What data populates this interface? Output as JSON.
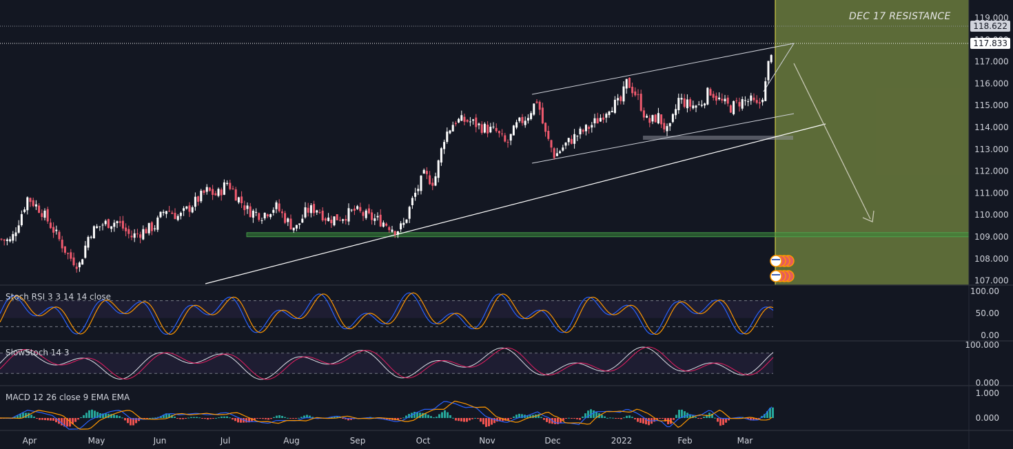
{
  "chart_data": {
    "type": "candlestick",
    "title": "",
    "annotation": "DEC 17 RESISTANCE",
    "price_axis": {
      "ticks": [
        "119.000",
        "118.000",
        "117.000",
        "116.000",
        "115.000",
        "114.000",
        "113.000",
        "112.000",
        "111.000",
        "110.000",
        "109.000",
        "108.000",
        "107.000"
      ],
      "ylim": [
        106.6,
        119.5
      ]
    },
    "resistance_level": "118.622",
    "last_price": "117.833",
    "support_level": 109.1,
    "x_axis": {
      "months": [
        "Apr",
        "May",
        "Jun",
        "Jul",
        "Aug",
        "Sep",
        "Oct",
        "Nov",
        "Dec",
        "2022",
        "Feb",
        "Mar"
      ]
    },
    "price_path": [
      [
        0,
        108.9
      ],
      [
        16,
        108.8
      ],
      [
        40,
        110.8
      ],
      [
        60,
        110.2
      ],
      [
        78,
        109.3
      ],
      [
        100,
        108.1
      ],
      [
        115,
        107.7
      ],
      [
        130,
        109.2
      ],
      [
        150,
        109.6
      ],
      [
        170,
        109.7
      ],
      [
        190,
        109.0
      ],
      [
        210,
        109.3
      ],
      [
        225,
        109.5
      ],
      [
        240,
        110.3
      ],
      [
        260,
        109.9
      ],
      [
        280,
        110.5
      ],
      [
        300,
        111.1
      ],
      [
        315,
        110.9
      ],
      [
        330,
        111.5
      ],
      [
        345,
        110.8
      ],
      [
        360,
        110.2
      ],
      [
        380,
        110.0
      ],
      [
        400,
        110.4
      ],
      [
        420,
        109.6
      ],
      [
        430,
        109.4
      ],
      [
        445,
        110.2
      ],
      [
        460,
        110.3
      ],
      [
        475,
        109.8
      ],
      [
        495,
        109.9
      ],
      [
        515,
        110.2
      ],
      [
        535,
        109.9
      ],
      [
        555,
        109.7
      ],
      [
        575,
        109.3
      ],
      [
        585,
        109.5
      ],
      [
        600,
        110.8
      ],
      [
        615,
        111.8
      ],
      [
        630,
        111.5
      ],
      [
        645,
        113.6
      ],
      [
        660,
        114.3
      ],
      [
        680,
        114.3
      ],
      [
        700,
        114.0
      ],
      [
        720,
        113.8
      ],
      [
        735,
        113.2
      ],
      [
        750,
        114.1
      ],
      [
        765,
        114.5
      ],
      [
        780,
        115.3
      ],
      [
        790,
        113.8
      ],
      [
        805,
        112.7
      ],
      [
        820,
        113.2
      ],
      [
        835,
        113.6
      ],
      [
        850,
        113.9
      ],
      [
        870,
        114.4
      ],
      [
        885,
        115.0
      ],
      [
        900,
        115.1
      ],
      [
        910,
        116.1
      ],
      [
        925,
        115.4
      ],
      [
        940,
        114.2
      ],
      [
        955,
        114.5
      ],
      [
        970,
        113.7
      ],
      [
        985,
        115.3
      ],
      [
        1000,
        115.0
      ],
      [
        1015,
        115.0
      ],
      [
        1030,
        115.7
      ],
      [
        1045,
        115.2
      ],
      [
        1060,
        114.9
      ],
      [
        1075,
        115.2
      ],
      [
        1090,
        115.2
      ],
      [
        1100,
        114.9
      ],
      [
        1110,
        115.8
      ],
      [
        1117,
        117.3
      ],
      [
        1122,
        117.8
      ]
    ],
    "candle_colors": {
      "up": "#ffffff",
      "down": "#f05a6e"
    },
    "indicators": [
      {
        "name": "Stoch RSI 3 3 14 14 close",
        "ticks": [
          "100.00",
          "50.00",
          "0.00"
        ],
        "levels": [
          80,
          20
        ]
      },
      {
        "name": "SlowStoch 14 3",
        "ticks": [
          "100.000",
          "0.000"
        ],
        "levels": [
          80,
          20
        ]
      },
      {
        "name": "MACD 12 26 close 9 EMA EMA",
        "ticks": [
          "1.000",
          "0.000"
        ]
      }
    ],
    "colors": {
      "background": "#131722",
      "zone": "#6a7a3c",
      "vline": "#f0e94a",
      "support": "#3a8a3a",
      "k_line": "#2962ff",
      "d_line": "#ff9800"
    }
  }
}
